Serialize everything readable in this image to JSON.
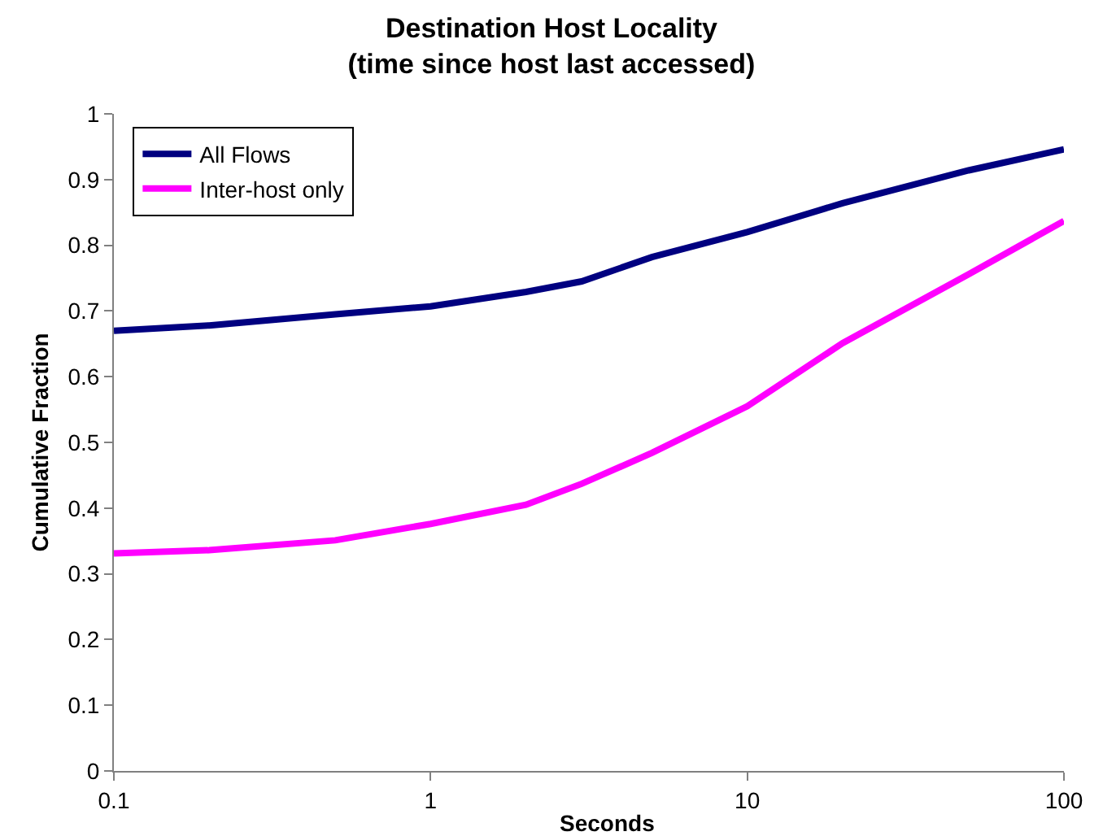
{
  "chart_data": {
    "type": "line",
    "title": "Destination Host Locality\n(time since host last accessed)",
    "xlabel": "Seconds",
    "ylabel": "Cumulative Fraction",
    "log": "x",
    "xlim": [
      0.1,
      100
    ],
    "xticks": [
      0.1,
      1,
      10,
      100
    ],
    "ylim": [
      0,
      1
    ],
    "yticks": [
      0,
      0.1,
      0.2,
      0.3,
      0.4,
      0.5,
      0.6,
      0.7,
      0.8,
      0.9,
      1
    ],
    "legend": "top left",
    "marker": "none",
    "line_style": "solid",
    "x": [
      0.1,
      0.2,
      0.5,
      1,
      2,
      3,
      5,
      10,
      20,
      50,
      100
    ],
    "series": [
      {
        "name": "All Flows",
        "color": "#000080",
        "values": [
          0.67,
          0.678,
          0.695,
          0.707,
          0.729,
          0.745,
          0.782,
          0.82,
          0.864,
          0.914,
          0.946
        ]
      },
      {
        "name": "Inter-host only",
        "color": "#ff00ff",
        "values": [
          0.331,
          0.336,
          0.351,
          0.376,
          0.405,
          0.437,
          0.484,
          0.555,
          0.651,
          0.756,
          0.837
        ]
      }
    ]
  }
}
